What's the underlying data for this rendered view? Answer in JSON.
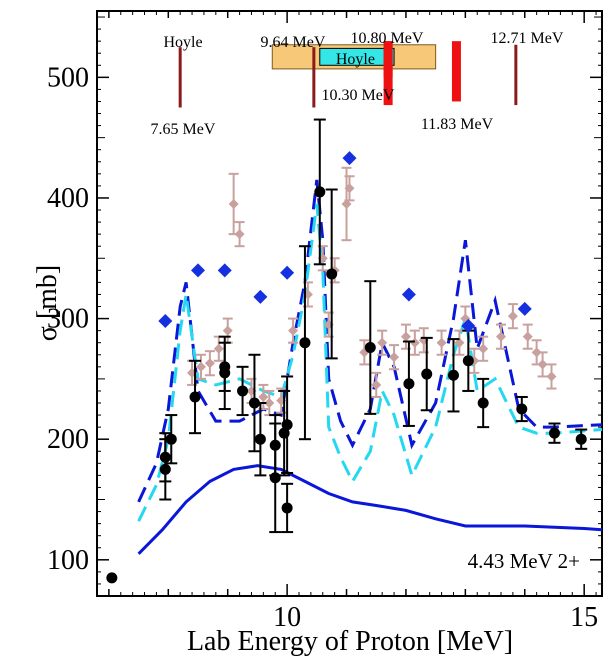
{
  "chart_data": {
    "type": "line",
    "xlabel": "Lab Energy of Proton [MeV]",
    "ylabel": "σ [mb]",
    "annotation": "4.43 MeV  2+",
    "xlim": [
      6.8,
      15.3
    ],
    "ylim": [
      70,
      555
    ],
    "xticks": [
      10,
      15
    ],
    "yticks": [
      100,
      200,
      300,
      400,
      500
    ],
    "grid": false,
    "series": [
      {
        "style": "solid",
        "color": "#0a16d8",
        "x": [
          7.5,
          7.9,
          8.3,
          8.7,
          9.1,
          9.5,
          9.9,
          10.3,
          10.7,
          11.1,
          11.5,
          12.0,
          12.5,
          13.0,
          13.5,
          14.0,
          14.5,
          15.0,
          15.3
        ],
        "y": [
          105,
          125,
          148,
          165,
          175,
          178,
          175,
          165,
          155,
          148,
          145,
          141,
          134,
          128,
          128,
          128,
          127,
          126,
          125
        ]
      },
      {
        "style": "dashed",
        "color": "#0a16d8",
        "x": [
          7.5,
          7.8,
          8.0,
          8.2,
          8.3,
          8.5,
          8.8,
          9.2,
          9.6,
          9.9,
          10.1,
          10.3,
          10.5,
          10.6,
          10.7,
          10.9,
          11.1,
          11.4,
          11.6,
          11.8,
          12.1,
          12.5,
          12.8,
          13.0,
          13.2,
          13.5,
          13.9,
          14.2,
          14.5,
          15.3
        ],
        "y": [
          148,
          180,
          225,
          310,
          330,
          240,
          215,
          215,
          225,
          220,
          280,
          330,
          415,
          365,
          250,
          215,
          195,
          225,
          280,
          260,
          195,
          230,
          300,
          365,
          275,
          315,
          225,
          210,
          210,
          212
        ]
      },
      {
        "style": "dashed",
        "color": "#25d8f0",
        "x": [
          7.5,
          7.8,
          8.0,
          8.2,
          8.3,
          8.5,
          8.8,
          9.2,
          9.6,
          9.9,
          10.1,
          10.3,
          10.5,
          10.6,
          10.7,
          10.9,
          11.1,
          11.4,
          11.6,
          11.8,
          12.1,
          12.5,
          12.8,
          13.0,
          13.2,
          13.5,
          13.9,
          14.2,
          14.5,
          15.3
        ],
        "y": [
          132,
          162,
          200,
          290,
          320,
          250,
          245,
          250,
          240,
          235,
          270,
          320,
          395,
          340,
          210,
          185,
          165,
          190,
          240,
          220,
          170,
          210,
          270,
          300,
          240,
          250,
          210,
          205,
          205,
          208
        ]
      }
    ],
    "points_black": [
      {
        "x": 7.05,
        "y": 85
      },
      {
        "x": 7.95,
        "y": 185,
        "err": 20
      },
      {
        "x": 7.95,
        "y": 175,
        "err": 25
      },
      {
        "x": 8.05,
        "y": 200,
        "err": 20
      },
      {
        "x": 8.45,
        "y": 235,
        "err": 30
      },
      {
        "x": 8.95,
        "y": 255,
        "err": 30
      },
      {
        "x": 8.95,
        "y": 260,
        "err": 20
      },
      {
        "x": 9.25,
        "y": 240,
        "err": 20
      },
      {
        "x": 9.45,
        "y": 230,
        "err": 40
      },
      {
        "x": 9.55,
        "y": 200,
        "err": 30
      },
      {
        "x": 9.8,
        "y": 195,
        "err": 25
      },
      {
        "x": 9.8,
        "y": 168,
        "err": 45
      },
      {
        "x": 9.95,
        "y": 205,
        "err": 35
      },
      {
        "x": 10.0,
        "y": 212,
        "err": 40
      },
      {
        "x": 10.0,
        "y": 143,
        "err": 20
      },
      {
        "x": 10.3,
        "y": 280,
        "err": 80
      },
      {
        "x": 10.55,
        "y": 405,
        "err": 60
      },
      {
        "x": 10.75,
        "y": 337,
        "err": 70
      },
      {
        "x": 11.4,
        "y": 276,
        "err": 55
      },
      {
        "x": 12.05,
        "y": 246,
        "err": 35
      },
      {
        "x": 12.35,
        "y": 254,
        "err": 30
      },
      {
        "x": 12.8,
        "y": 253,
        "err": 30
      },
      {
        "x": 13.05,
        "y": 265,
        "err": 25
      },
      {
        "x": 13.3,
        "y": 230,
        "err": 20
      },
      {
        "x": 13.95,
        "y": 225,
        "err": 10
      },
      {
        "x": 14.5,
        "y": 205,
        "err": 8
      },
      {
        "x": 14.95,
        "y": 200,
        "err": 8
      }
    ],
    "points_tan": [
      {
        "x": 8.4,
        "y": 255
      },
      {
        "x": 8.55,
        "y": 260
      },
      {
        "x": 8.7,
        "y": 263
      },
      {
        "x": 8.85,
        "y": 275
      },
      {
        "x": 9.0,
        "y": 290
      },
      {
        "x": 9.1,
        "y": 395,
        "err": 25
      },
      {
        "x": 9.2,
        "y": 370
      },
      {
        "x": 9.4,
        "y": 240
      },
      {
        "x": 9.6,
        "y": 235
      },
      {
        "x": 9.7,
        "y": 230
      },
      {
        "x": 9.9,
        "y": 232
      },
      {
        "x": 10.1,
        "y": 290
      },
      {
        "x": 10.35,
        "y": 320
      },
      {
        "x": 10.6,
        "y": 350
      },
      {
        "x": 10.7,
        "y": 295
      },
      {
        "x": 10.8,
        "y": 340
      },
      {
        "x": 11.0,
        "y": 395,
        "err": 30
      },
      {
        "x": 11.05,
        "y": 408
      },
      {
        "x": 11.3,
        "y": 272
      },
      {
        "x": 11.5,
        "y": 245
      },
      {
        "x": 11.6,
        "y": 280
      },
      {
        "x": 11.8,
        "y": 268
      },
      {
        "x": 12.0,
        "y": 285
      },
      {
        "x": 12.15,
        "y": 280
      },
      {
        "x": 12.3,
        "y": 282
      },
      {
        "x": 12.6,
        "y": 280
      },
      {
        "x": 12.9,
        "y": 280
      },
      {
        "x": 13.0,
        "y": 300
      },
      {
        "x": 13.15,
        "y": 265
      },
      {
        "x": 13.3,
        "y": 275
      },
      {
        "x": 13.6,
        "y": 285
      },
      {
        "x": 13.8,
        "y": 302
      },
      {
        "x": 14.05,
        "y": 285
      },
      {
        "x": 14.2,
        "y": 272
      },
      {
        "x": 14.3,
        "y": 262
      },
      {
        "x": 14.45,
        "y": 252
      }
    ],
    "points_blue_diamond": [
      {
        "x": 7.95,
        "y": 298
      },
      {
        "x": 8.5,
        "y": 340
      },
      {
        "x": 8.95,
        "y": 340
      },
      {
        "x": 9.55,
        "y": 318
      },
      {
        "x": 10.0,
        "y": 338
      },
      {
        "x": 11.05,
        "y": 433
      },
      {
        "x": 12.05,
        "y": 320
      },
      {
        "x": 13.05,
        "y": 294
      },
      {
        "x": 14.0,
        "y": 308
      }
    ],
    "resonances": [
      {
        "label": "Hoyle",
        "energy_label": "7.65 MeV",
        "x": 8.2,
        "y_top": 525,
        "y_bot": 475,
        "color": "#8b1a1a"
      },
      {
        "label": "9.64 MeV",
        "x": 10.45,
        "y_top": 525,
        "y_bot": 475,
        "color": "#8b1a1a"
      },
      {
        "label": "10.30 MeV",
        "x": 11.7,
        "y_top": 530,
        "y_bot": 477,
        "color": "#ee1111"
      },
      {
        "label": "10.80 MeV",
        "x": 11.7,
        "y_top": 530,
        "y_bot": 500,
        "color": "#ee1111"
      },
      {
        "label": "11.83 MeV",
        "x": 12.85,
        "y_top": 530,
        "y_bot": 480,
        "color": "#ee1111"
      },
      {
        "label": "12.71 MeV",
        "x": 13.85,
        "y_top": 527,
        "y_bot": 477,
        "color": "#8b1a1a"
      }
    ],
    "hoyle_band": {
      "label": "Hoyle",
      "x_from": 9.75,
      "x_to": 12.5,
      "y_from": 507,
      "y_to": 527
    }
  }
}
